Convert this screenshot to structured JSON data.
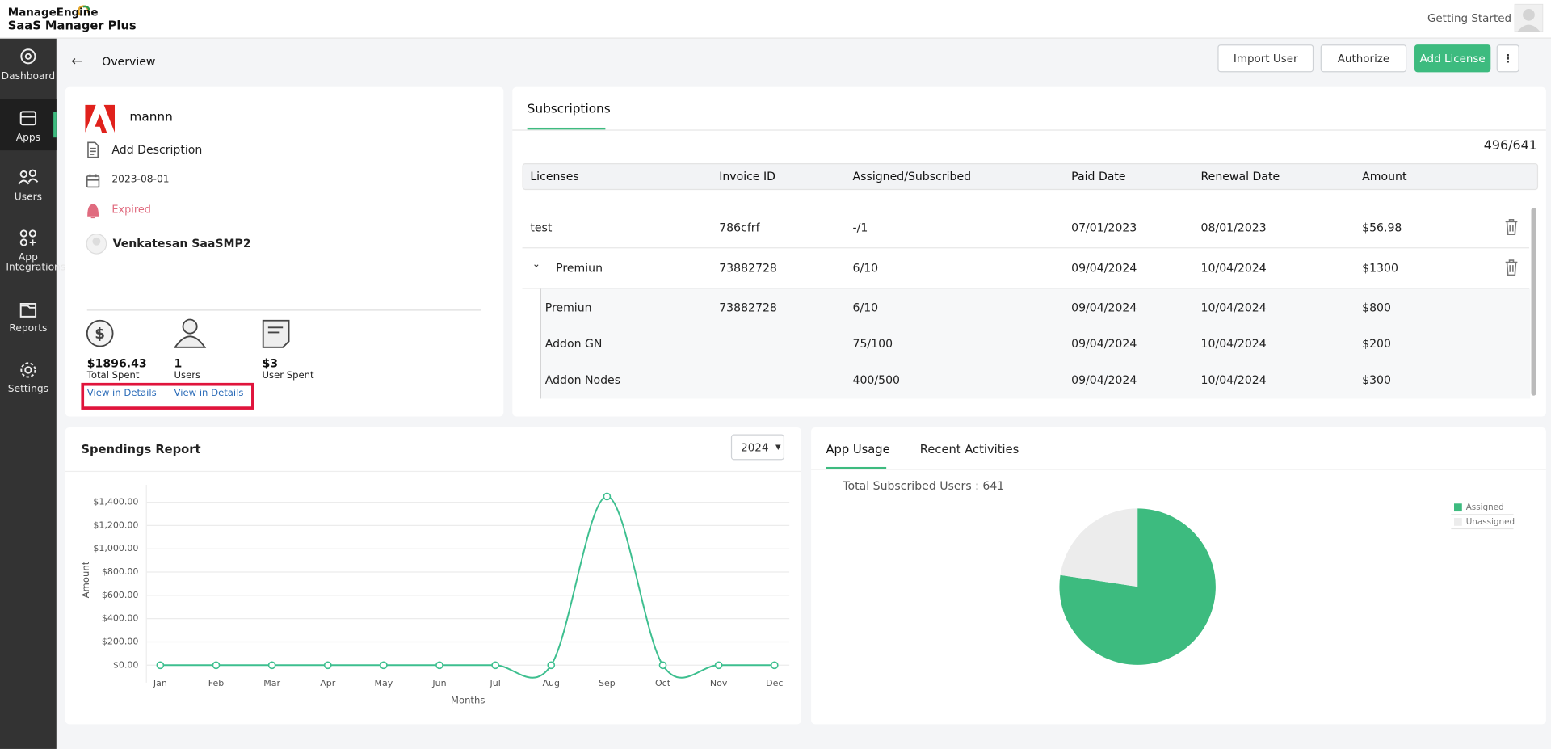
{
  "header": {
    "brand": "ManageEngine",
    "product": "SaaS Manager Plus",
    "getting_started": "Getting Started"
  },
  "sidebar": {
    "items": [
      "Dashboard",
      "Apps",
      "Users",
      "App Integrations",
      "Reports",
      "Settings"
    ]
  },
  "toolbar": {
    "title": "Overview",
    "buttons": [
      "Import User",
      "Authorize",
      "Add License"
    ]
  },
  "app": {
    "name": "mannn",
    "description": "Add Description",
    "date": "2023-08-01",
    "status": "Expired",
    "owner": "Venkatesan SaaSMP2",
    "stats": [
      {
        "value": "$1896.43",
        "label": "Total Spent"
      },
      {
        "value": "1",
        "label": "Users"
      },
      {
        "value": "$3",
        "label": "User Spent"
      }
    ],
    "links": [
      "View in Details",
      "View in Details"
    ]
  },
  "subscriptions": {
    "tab": "Subscriptions",
    "count": "496/641",
    "columns": [
      "Licenses",
      "Invoice ID",
      "Assigned/Subscribed",
      "Paid Date",
      "Renewal Date",
      "Amount"
    ],
    "rows": [
      [
        "test",
        "786cfrf",
        "-/1",
        "07/01/2023",
        "08/01/2023",
        "$56.98"
      ],
      [
        "Premiun",
        "73882728",
        "6/10",
        "09/04/2024",
        "10/04/2024",
        "$1300"
      ],
      [
        "Premiun",
        "73882728",
        "6/10",
        "09/04/2024",
        "10/04/2024",
        "$800"
      ],
      [
        "Addon GN",
        null,
        "75/100",
        "09/04/2024",
        "10/04/2024",
        "$200"
      ],
      [
        "Addon Nodes",
        null,
        "400/500",
        "09/04/2024",
        "10/04/2024",
        "$300"
      ]
    ]
  },
  "spendings": {
    "year": "2024"
  },
  "usage": {
    "tabs": [
      "App Usage",
      "Recent Activities"
    ]
  },
  "chart_data": [
    {
      "type": "line",
      "title": "Spendings Report",
      "xlabel": "Months",
      "ylabel": "Amount",
      "categories": [
        "Jan",
        "Feb",
        "Mar",
        "Apr",
        "May",
        "Jun",
        "Jul",
        "Aug",
        "Sep",
        "Oct",
        "Nov",
        "Dec"
      ],
      "values": [
        0,
        0,
        0,
        0,
        0,
        0,
        0,
        0,
        1450,
        0,
        0,
        0
      ],
      "color": "#3dbf8f",
      "ylim": [
        -150,
        1550
      ],
      "yticks": [
        {
          "value": 0,
          "label": "$0.00"
        },
        {
          "value": 200,
          "label": "$200.00"
        },
        {
          "value": 400,
          "label": "$400.00"
        },
        {
          "value": 600,
          "label": "$600.00"
        },
        {
          "value": 800,
          "label": "$800.00"
        },
        {
          "value": 1000,
          "label": "$1,000.00"
        },
        {
          "value": 1200,
          "label": "$1,200.00"
        },
        {
          "value": 1400,
          "label": "$1,400.00"
        }
      ],
      "grid": true
    },
    {
      "type": "pie",
      "title": "Total Subscribed Users : 641",
      "categories": [
        "Assigned",
        "Unassigned"
      ],
      "values": [
        496,
        145
      ],
      "colors": [
        "#3dbb7f",
        "#ececec"
      ],
      "legend": "top-right"
    }
  ]
}
